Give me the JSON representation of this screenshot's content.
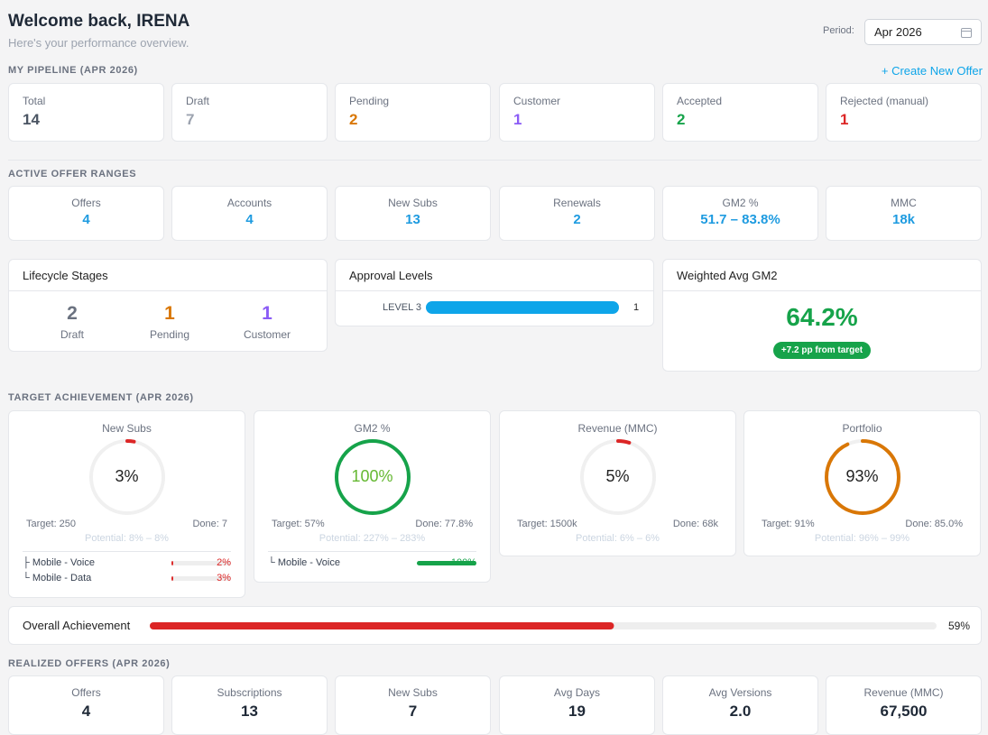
{
  "header": {
    "title": "Welcome back, IRENA",
    "subtitle": "Here's your performance overview.",
    "period_label": "Period:",
    "period_value": "Apr 2026"
  },
  "pipeline": {
    "heading": "MY PIPELINE (APR 2026)",
    "action": "+ Create New Offer",
    "cards": [
      {
        "label": "Total",
        "value": 14,
        "color": "#4b5563"
      },
      {
        "label": "Draft",
        "value": 7,
        "color": "#9ca3af"
      },
      {
        "label": "Pending",
        "value": 2,
        "color": "#d97706"
      },
      {
        "label": "Customer",
        "value": 1,
        "color": "#8b5cf6"
      },
      {
        "label": "Accepted",
        "value": 2,
        "color": "#16a34a"
      },
      {
        "label": "Rejected (manual)",
        "value": 1,
        "color": "#dc2626"
      }
    ]
  },
  "active_ranges": {
    "heading": "ACTIVE OFFER RANGES",
    "cards": [
      {
        "label": "Offers",
        "value": 4
      },
      {
        "label": "Accounts",
        "value": 4
      },
      {
        "label": "New Subs",
        "value": 13
      },
      {
        "label": "Renewals",
        "value": 2
      },
      {
        "label": "GM2 %",
        "value": "51.7 – 83.8%"
      },
      {
        "label": "MMC",
        "value": "18k"
      }
    ]
  },
  "lifecycle": {
    "title": "Lifecycle Stages",
    "stages": [
      {
        "value": 2,
        "label": "Draft",
        "color": "#6b7280"
      },
      {
        "value": 1,
        "label": "Pending",
        "color": "#d97706"
      },
      {
        "value": 1,
        "label": "Customer",
        "color": "#8b5cf6"
      }
    ]
  },
  "approval": {
    "title": "Approval Levels",
    "levels": [
      {
        "label": "LEVEL 3",
        "count": 1
      }
    ]
  },
  "weighted": {
    "title": "Weighted Avg GM2",
    "value": "64.2%",
    "badge": "+7.2 pp from target"
  },
  "target": {
    "heading": "TARGET ACHIEVEMENT (APR 2026)",
    "cards": [
      {
        "title": "New Subs",
        "value": 3,
        "label": "3%",
        "color": "#dc2626",
        "text_color": "#222",
        "target": "Target: 250",
        "done": "Done: 7",
        "potential": "Potential: 8% – 8%",
        "items": [
          {
            "name": "├ Mobile - Voice",
            "value": 2,
            "label": "2%",
            "color": "#dc2626"
          },
          {
            "name": "└ Mobile - Data",
            "value": 3,
            "label": "3%",
            "color": "#dc2626"
          }
        ]
      },
      {
        "title": "GM2 %",
        "value": 100,
        "label": "100%",
        "color": "#16a34a",
        "text_color": "#65b832",
        "target": "Target: 57%",
        "done": "Done: 77.8%",
        "potential": "Potential: 227% – 283%",
        "items": [
          {
            "name": "└ Mobile - Voice",
            "value": 100,
            "label": "100%",
            "color": "#16a34a"
          }
        ]
      },
      {
        "title": "Revenue (MMC)",
        "value": 5,
        "label": "5%",
        "color": "#dc2626",
        "text_color": "#222",
        "target": "Target: 1500k",
        "done": "Done: 68k",
        "potential": "Potential: 6% – 6%",
        "items": []
      },
      {
        "title": "Portfolio",
        "value": 93,
        "label": "93%",
        "color": "#d97706",
        "text_color": "#222",
        "target": "Target: 91%",
        "done": "Done: 85.0%",
        "potential": "Potential: 96% – 99%",
        "items": []
      }
    ]
  },
  "overall": {
    "label": "Overall Achievement",
    "value": 59,
    "value_label": "59%",
    "color": "#dc2626"
  },
  "realized": {
    "heading": "REALIZED OFFERS (APR 2026)",
    "cards": [
      {
        "label": "Offers",
        "value": 4
      },
      {
        "label": "Subscriptions",
        "value": 13
      },
      {
        "label": "New Subs",
        "value": 7
      },
      {
        "label": "Avg Days",
        "value": 19
      },
      {
        "label": "Avg Versions",
        "value": "2.0"
      },
      {
        "label": "Revenue (MMC)",
        "value": "67,500"
      }
    ]
  }
}
